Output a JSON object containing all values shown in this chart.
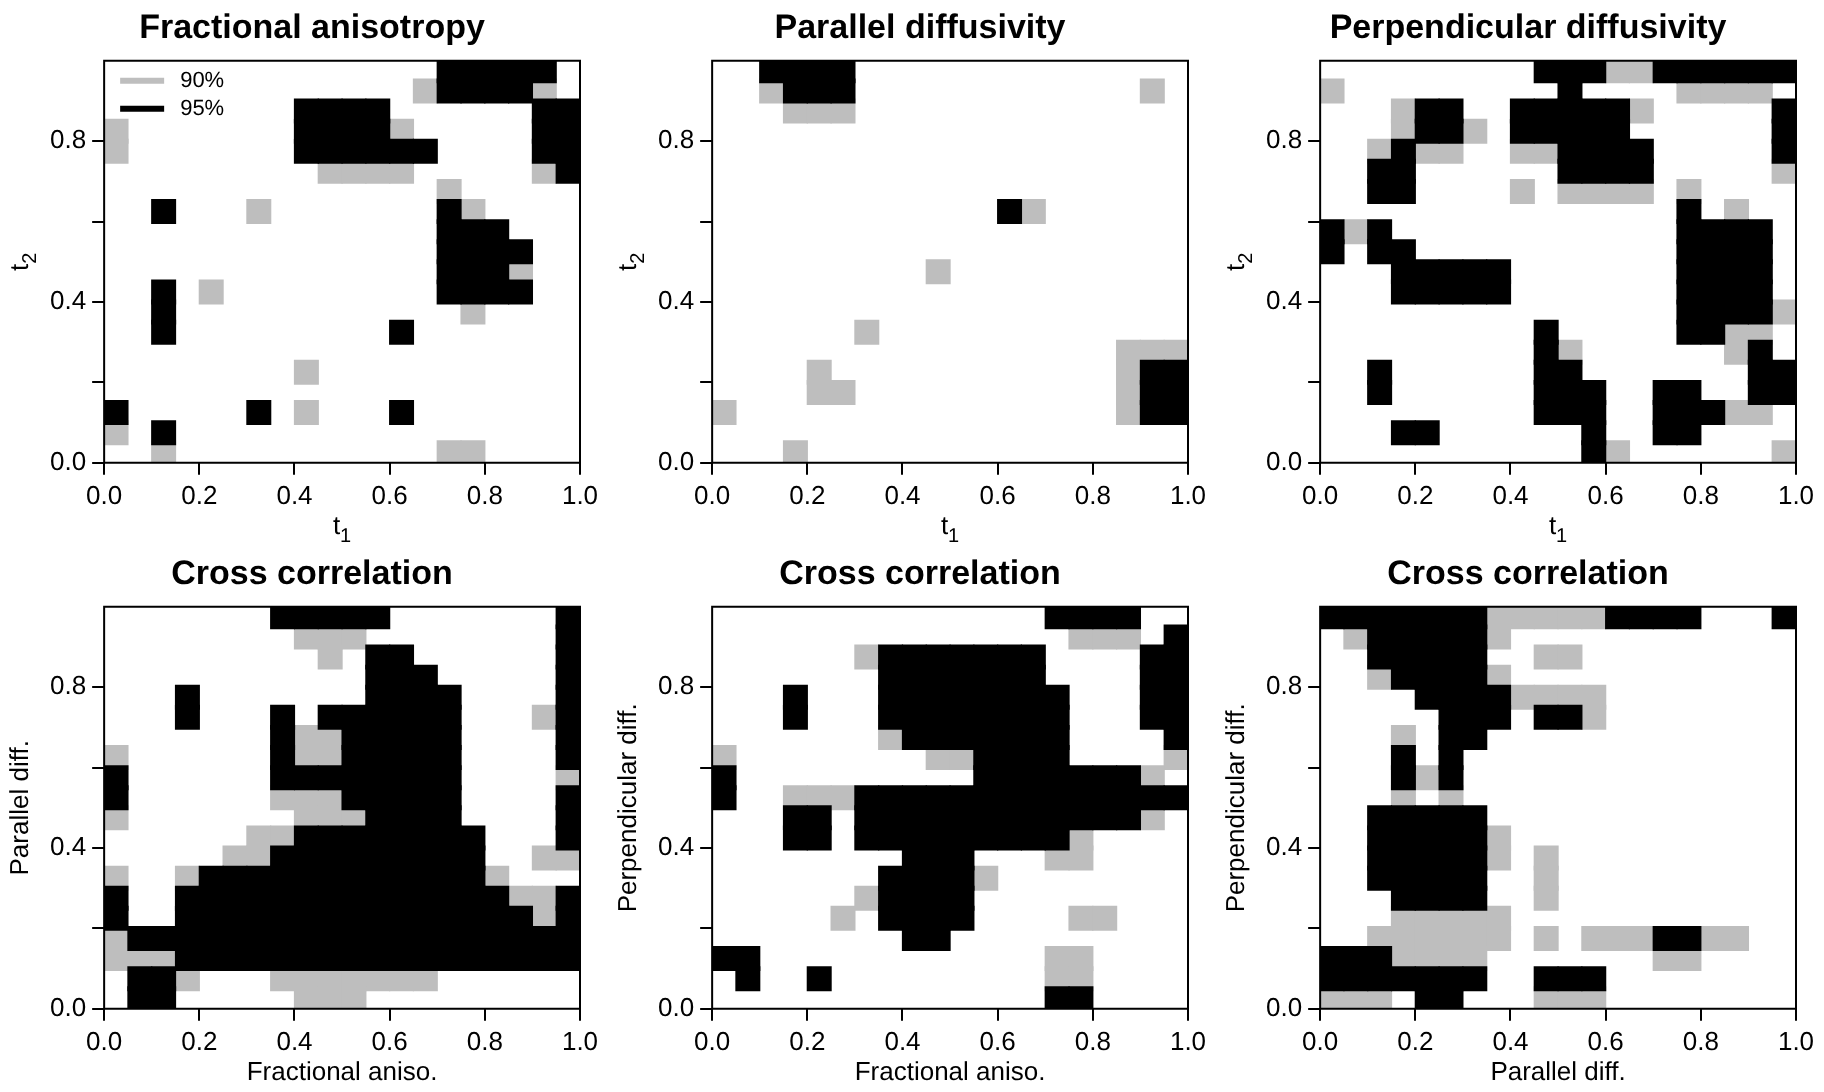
{
  "chart_data": [
    {
      "type": "scatter",
      "title": "Fractional anisotropy",
      "xlabel": "t$_{1}$",
      "ylabel": "t$_{2}$",
      "xlim": [
        0,
        1
      ],
      "ylim": [
        0,
        1
      ],
      "xticks": [
        {
          "value": 0,
          "label": "0.0"
        },
        {
          "value": 0.2,
          "label": "0.2"
        },
        {
          "value": 0.4,
          "label": "0.4"
        },
        {
          "value": 0.6,
          "label": "0.6"
        },
        {
          "value": 0.8,
          "label": "0.8"
        },
        {
          "value": 1,
          "label": "1.0"
        }
      ],
      "yticks": [
        {
          "value": 0,
          "label": "0.0"
        },
        {
          "value": 0.2,
          "label": null
        },
        {
          "value": 0.4,
          "label": "0.4"
        },
        {
          "value": 0.6,
          "label": null
        },
        {
          "value": 0.8,
          "label": "0.8"
        }
      ],
      "marker": "square",
      "legend": "top left",
      "series": [
        {
          "name": "90%",
          "color": "#bebebe",
          "x": [
            0.675,
            0.925,
            0.025,
            0.625,
            0.025,
            0.475,
            0.525,
            0.575,
            0.625,
            0.925,
            0.725,
            0.325,
            0.775,
            0.875,
            0.225,
            0.775,
            0.425,
            0.425,
            0.025,
            0.125,
            0.725,
            0.775
          ],
          "values": [
            0.925,
            0.925,
            0.825,
            0.825,
            0.775,
            0.725,
            0.725,
            0.725,
            0.725,
            0.725,
            0.675,
            0.625,
            0.625,
            0.475,
            0.425,
            0.375,
            0.225,
            0.125,
            0.075,
            0.025,
            0.025,
            0.025
          ]
        },
        {
          "name": "95%",
          "color": "#000000",
          "x": [
            0.725,
            0.775,
            0.825,
            0.875,
            0.925,
            0.725,
            0.775,
            0.825,
            0.875,
            0.425,
            0.475,
            0.525,
            0.575,
            0.925,
            0.975,
            0.425,
            0.475,
            0.525,
            0.575,
            0.925,
            0.975,
            0.425,
            0.475,
            0.525,
            0.575,
            0.625,
            0.675,
            0.925,
            0.975,
            0.975,
            0.125,
            0.725,
            0.725,
            0.775,
            0.825,
            0.725,
            0.775,
            0.825,
            0.875,
            0.725,
            0.775,
            0.825,
            0.125,
            0.725,
            0.775,
            0.825,
            0.875,
            0.125,
            0.125,
            0.625,
            0.025,
            0.325,
            0.625,
            0.125
          ],
          "values": [
            0.975,
            0.975,
            0.975,
            0.975,
            0.975,
            0.925,
            0.925,
            0.925,
            0.925,
            0.875,
            0.875,
            0.875,
            0.875,
            0.875,
            0.875,
            0.825,
            0.825,
            0.825,
            0.825,
            0.825,
            0.825,
            0.775,
            0.775,
            0.775,
            0.775,
            0.775,
            0.775,
            0.775,
            0.775,
            0.725,
            0.625,
            0.625,
            0.575,
            0.575,
            0.575,
            0.525,
            0.525,
            0.525,
            0.525,
            0.475,
            0.475,
            0.475,
            0.425,
            0.425,
            0.425,
            0.425,
            0.425,
            0.375,
            0.325,
            0.325,
            0.125,
            0.125,
            0.125,
            0.075
          ]
        }
      ]
    },
    {
      "type": "scatter",
      "title": "Parallel diffusivity",
      "xlabel": "t$_{1}$",
      "ylabel": "t$_{2}$",
      "xlim": [
        0,
        1
      ],
      "ylim": [
        0,
        1
      ],
      "xticks": [
        {
          "value": 0,
          "label": "0.0"
        },
        {
          "value": 0.2,
          "label": "0.2"
        },
        {
          "value": 0.4,
          "label": "0.4"
        },
        {
          "value": 0.6,
          "label": "0.6"
        },
        {
          "value": 0.8,
          "label": "0.8"
        },
        {
          "value": 1,
          "label": "1.0"
        }
      ],
      "yticks": [
        {
          "value": 0,
          "label": "0.0"
        },
        {
          "value": 0.2,
          "label": null
        },
        {
          "value": 0.4,
          "label": "0.4"
        },
        {
          "value": 0.6,
          "label": null
        },
        {
          "value": 0.8,
          "label": "0.8"
        }
      ],
      "marker": "square",
      "series": [
        {
          "color": "#bebebe",
          "x": [
            0.125,
            0.925,
            0.175,
            0.225,
            0.275,
            0.675,
            0.475,
            0.325,
            0.875,
            0.925,
            0.975,
            0.225,
            0.875,
            0.225,
            0.275,
            0.875,
            0.025,
            0.875,
            0.175
          ],
          "values": [
            0.925,
            0.925,
            0.875,
            0.875,
            0.875,
            0.625,
            0.475,
            0.325,
            0.275,
            0.275,
            0.275,
            0.225,
            0.225,
            0.175,
            0.175,
            0.175,
            0.125,
            0.125,
            0.025
          ]
        },
        {
          "color": "#000000",
          "x": [
            0.125,
            0.175,
            0.225,
            0.275,
            0.175,
            0.225,
            0.275,
            0.625,
            0.925,
            0.975,
            0.925,
            0.975,
            0.925,
            0.975
          ],
          "values": [
            0.975,
            0.975,
            0.975,
            0.975,
            0.925,
            0.925,
            0.925,
            0.625,
            0.225,
            0.225,
            0.175,
            0.175,
            0.125,
            0.125
          ]
        }
      ]
    },
    {
      "type": "scatter",
      "title": "Perpendicular diffusivity",
      "xlabel": "t$_{1}$",
      "ylabel": "t$_{2}$",
      "xlim": [
        0,
        1
      ],
      "ylim": [
        0,
        1
      ],
      "xticks": [
        {
          "value": 0,
          "label": "0.0"
        },
        {
          "value": 0.2,
          "label": "0.2"
        },
        {
          "value": 0.4,
          "label": "0.4"
        },
        {
          "value": 0.6,
          "label": "0.6"
        },
        {
          "value": 0.8,
          "label": "0.8"
        },
        {
          "value": 1,
          "label": "1.0"
        }
      ],
      "yticks": [
        {
          "value": 0,
          "label": "0.0"
        },
        {
          "value": 0.2,
          "label": null
        },
        {
          "value": 0.4,
          "label": "0.4"
        },
        {
          "value": 0.6,
          "label": null
        },
        {
          "value": 0.8,
          "label": "0.8"
        }
      ],
      "marker": "square",
      "series": [
        {
          "color": "#bebebe",
          "x": [
            0.625,
            0.675,
            0.025,
            0.775,
            0.825,
            0.875,
            0.925,
            0.175,
            0.675,
            0.175,
            0.325,
            0.125,
            0.225,
            0.275,
            0.425,
            0.475,
            0.975,
            0.425,
            0.525,
            0.575,
            0.625,
            0.675,
            0.775,
            0.875,
            0.075,
            0.975,
            0.875,
            0.925,
            0.525,
            0.875,
            0.875,
            0.925,
            0.625,
            0.975
          ],
          "values": [
            0.975,
            0.975,
            0.925,
            0.925,
            0.925,
            0.925,
            0.925,
            0.875,
            0.875,
            0.825,
            0.825,
            0.775,
            0.775,
            0.775,
            0.775,
            0.775,
            0.725,
            0.675,
            0.675,
            0.675,
            0.675,
            0.675,
            0.675,
            0.625,
            0.575,
            0.375,
            0.325,
            0.325,
            0.275,
            0.275,
            0.125,
            0.125,
            0.025,
            0.025
          ]
        },
        {
          "color": "#000000",
          "x": [
            0.475,
            0.525,
            0.575,
            0.725,
            0.775,
            0.825,
            0.875,
            0.925,
            0.975,
            0.525,
            0.225,
            0.275,
            0.425,
            0.475,
            0.525,
            0.575,
            0.625,
            0.975,
            0.225,
            0.275,
            0.425,
            0.475,
            0.525,
            0.575,
            0.625,
            0.975,
            0.175,
            0.525,
            0.575,
            0.625,
            0.675,
            0.975,
            0.125,
            0.175,
            0.525,
            0.575,
            0.625,
            0.675,
            0.125,
            0.175,
            0.775,
            0.025,
            0.125,
            0.775,
            0.825,
            0.875,
            0.925,
            0.025,
            0.125,
            0.175,
            0.775,
            0.825,
            0.875,
            0.925,
            0.175,
            0.225,
            0.275,
            0.325,
            0.375,
            0.775,
            0.825,
            0.875,
            0.925,
            0.175,
            0.225,
            0.275,
            0.325,
            0.375,
            0.775,
            0.825,
            0.875,
            0.925,
            0.775,
            0.825,
            0.875,
            0.925,
            0.475,
            0.775,
            0.825,
            0.475,
            0.925,
            0.125,
            0.475,
            0.525,
            0.925,
            0.975,
            0.125,
            0.475,
            0.525,
            0.575,
            0.725,
            0.775,
            0.925,
            0.975,
            0.475,
            0.525,
            0.575,
            0.725,
            0.775,
            0.825,
            0.175,
            0.225,
            0.575,
            0.725,
            0.775,
            0.575
          ],
          "values": [
            0.975,
            0.975,
            0.975,
            0.975,
            0.975,
            0.975,
            0.975,
            0.975,
            0.975,
            0.925,
            0.875,
            0.875,
            0.875,
            0.875,
            0.875,
            0.875,
            0.875,
            0.875,
            0.825,
            0.825,
            0.825,
            0.825,
            0.825,
            0.825,
            0.825,
            0.825,
            0.775,
            0.775,
            0.775,
            0.775,
            0.775,
            0.775,
            0.725,
            0.725,
            0.725,
            0.725,
            0.725,
            0.725,
            0.675,
            0.675,
            0.625,
            0.575,
            0.575,
            0.575,
            0.575,
            0.575,
            0.575,
            0.525,
            0.525,
            0.525,
            0.525,
            0.525,
            0.525,
            0.525,
            0.475,
            0.475,
            0.475,
            0.475,
            0.475,
            0.475,
            0.475,
            0.475,
            0.475,
            0.425,
            0.425,
            0.425,
            0.425,
            0.425,
            0.425,
            0.425,
            0.425,
            0.425,
            0.375,
            0.375,
            0.375,
            0.375,
            0.325,
            0.325,
            0.325,
            0.275,
            0.275,
            0.225,
            0.225,
            0.225,
            0.225,
            0.225,
            0.175,
            0.175,
            0.175,
            0.175,
            0.175,
            0.175,
            0.175,
            0.175,
            0.125,
            0.125,
            0.125,
            0.125,
            0.125,
            0.125,
            0.075,
            0.075,
            0.075,
            0.075,
            0.075,
            0.025
          ]
        }
      ]
    },
    {
      "type": "scatter",
      "title": "Cross correlation",
      "xlabel": "Fractional aniso.",
      "ylabel": "Parallel diff.",
      "xlim": [
        0,
        1
      ],
      "ylim": [
        0,
        1
      ],
      "xticks": [
        {
          "value": 0,
          "label": "0.0"
        },
        {
          "value": 0.2,
          "label": "0.2"
        },
        {
          "value": 0.4,
          "label": "0.4"
        },
        {
          "value": 0.6,
          "label": "0.6"
        },
        {
          "value": 0.8,
          "label": "0.8"
        },
        {
          "value": 1,
          "label": "1.0"
        }
      ],
      "yticks": [
        {
          "value": 0,
          "label": "0.0"
        },
        {
          "value": 0.2,
          "label": null
        },
        {
          "value": 0.4,
          "label": "0.4"
        },
        {
          "value": 0.6,
          "label": null
        },
        {
          "value": 0.8,
          "label": "0.8"
        }
      ],
      "marker": "square",
      "series": [
        {
          "color": "#bebebe",
          "x": [
            0.425,
            0.475,
            0.525,
            0.475,
            0.925,
            0.425,
            0.475,
            0.025,
            0.425,
            0.475,
            0.975,
            0.375,
            0.425,
            0.475,
            0.025,
            0.425,
            0.475,
            0.525,
            0.325,
            0.375,
            0.275,
            0.325,
            0.925,
            0.975,
            0.025,
            0.175,
            0.825,
            0.875,
            0.925,
            0.925,
            0.025,
            0.025,
            0.075,
            0.125,
            0.175,
            0.375,
            0.425,
            0.475,
            0.525,
            0.575,
            0.625,
            0.675,
            0.425,
            0.475,
            0.525
          ],
          "values": [
            0.925,
            0.925,
            0.925,
            0.875,
            0.725,
            0.675,
            0.675,
            0.625,
            0.625,
            0.625,
            0.575,
            0.525,
            0.525,
            0.525,
            0.475,
            0.475,
            0.475,
            0.475,
            0.425,
            0.425,
            0.375,
            0.375,
            0.375,
            0.375,
            0.325,
            0.325,
            0.325,
            0.275,
            0.275,
            0.225,
            0.175,
            0.125,
            0.125,
            0.125,
            0.075,
            0.075,
            0.075,
            0.075,
            0.075,
            0.075,
            0.075,
            0.075,
            0.025,
            0.025,
            0.025
          ]
        },
        {
          "color": "#000000",
          "x": [
            0.375,
            0.425,
            0.475,
            0.525,
            0.575,
            0.975,
            0.975,
            0.575,
            0.625,
            0.975,
            0.575,
            0.625,
            0.675,
            0.975,
            0.175,
            0.575,
            0.625,
            0.675,
            0.725,
            0.975,
            0.175,
            0.375,
            0.475,
            0.525,
            0.575,
            0.625,
            0.675,
            0.725,
            0.975,
            0.375,
            0.525,
            0.575,
            0.625,
            0.675,
            0.725,
            0.975,
            0.375,
            0.525,
            0.575,
            0.625,
            0.675,
            0.725,
            0.975,
            0.025,
            0.375,
            0.425,
            0.475,
            0.525,
            0.575,
            0.625,
            0.675,
            0.725,
            0.025,
            0.525,
            0.575,
            0.625,
            0.675,
            0.725,
            0.975,
            0.575,
            0.625,
            0.675,
            0.725,
            0.975,
            0.425,
            0.475,
            0.525,
            0.575,
            0.625,
            0.675,
            0.725,
            0.775,
            0.975,
            0.375,
            0.425,
            0.475,
            0.525,
            0.575,
            0.625,
            0.675,
            0.725,
            0.775,
            0.225,
            0.275,
            0.325,
            0.375,
            0.425,
            0.475,
            0.525,
            0.575,
            0.625,
            0.675,
            0.725,
            0.775,
            0.025,
            0.175,
            0.225,
            0.275,
            0.325,
            0.375,
            0.425,
            0.475,
            0.525,
            0.575,
            0.625,
            0.675,
            0.725,
            0.775,
            0.825,
            0.975,
            0.025,
            0.175,
            0.225,
            0.275,
            0.325,
            0.375,
            0.425,
            0.475,
            0.525,
            0.575,
            0.625,
            0.675,
            0.725,
            0.775,
            0.825,
            0.875,
            0.975,
            0.075,
            0.125,
            0.175,
            0.225,
            0.275,
            0.325,
            0.375,
            0.425,
            0.475,
            0.525,
            0.575,
            0.625,
            0.675,
            0.725,
            0.775,
            0.825,
            0.875,
            0.925,
            0.975,
            0.175,
            0.225,
            0.275,
            0.325,
            0.375,
            0.425,
            0.475,
            0.525,
            0.575,
            0.625,
            0.675,
            0.725,
            0.775,
            0.825,
            0.875,
            0.925,
            0.975,
            0.075,
            0.125,
            0.075,
            0.125
          ],
          "values": [
            0.975,
            0.975,
            0.975,
            0.975,
            0.975,
            0.975,
            0.925,
            0.875,
            0.875,
            0.875,
            0.825,
            0.825,
            0.825,
            0.825,
            0.775,
            0.775,
            0.775,
            0.775,
            0.775,
            0.775,
            0.725,
            0.725,
            0.725,
            0.725,
            0.725,
            0.725,
            0.725,
            0.725,
            0.725,
            0.675,
            0.675,
            0.675,
            0.675,
            0.675,
            0.675,
            0.675,
            0.625,
            0.625,
            0.625,
            0.625,
            0.625,
            0.625,
            0.625,
            0.575,
            0.575,
            0.575,
            0.575,
            0.575,
            0.575,
            0.575,
            0.575,
            0.575,
            0.525,
            0.525,
            0.525,
            0.525,
            0.525,
            0.525,
            0.525,
            0.475,
            0.475,
            0.475,
            0.475,
            0.475,
            0.425,
            0.425,
            0.425,
            0.425,
            0.425,
            0.425,
            0.425,
            0.425,
            0.425,
            0.375,
            0.375,
            0.375,
            0.375,
            0.375,
            0.375,
            0.375,
            0.375,
            0.375,
            0.325,
            0.325,
            0.325,
            0.325,
            0.325,
            0.325,
            0.325,
            0.325,
            0.325,
            0.325,
            0.325,
            0.325,
            0.275,
            0.275,
            0.275,
            0.275,
            0.275,
            0.275,
            0.275,
            0.275,
            0.275,
            0.275,
            0.275,
            0.275,
            0.275,
            0.275,
            0.275,
            0.275,
            0.225,
            0.225,
            0.225,
            0.225,
            0.225,
            0.225,
            0.225,
            0.225,
            0.225,
            0.225,
            0.225,
            0.225,
            0.225,
            0.225,
            0.225,
            0.225,
            0.225,
            0.175,
            0.175,
            0.175,
            0.175,
            0.175,
            0.175,
            0.175,
            0.175,
            0.175,
            0.175,
            0.175,
            0.175,
            0.175,
            0.175,
            0.175,
            0.175,
            0.175,
            0.175,
            0.175,
            0.125,
            0.125,
            0.125,
            0.125,
            0.125,
            0.125,
            0.125,
            0.125,
            0.125,
            0.125,
            0.125,
            0.125,
            0.125,
            0.125,
            0.125,
            0.125,
            0.125,
            0.075,
            0.075,
            0.025,
            0.025
          ]
        }
      ]
    },
    {
      "type": "scatter",
      "title": "Cross correlation",
      "xlabel": "Fractional aniso.",
      "ylabel": "Perpendicular diff.",
      "xlim": [
        0,
        1
      ],
      "ylim": [
        0,
        1
      ],
      "xticks": [
        {
          "value": 0,
          "label": "0.0"
        },
        {
          "value": 0.2,
          "label": "0.2"
        },
        {
          "value": 0.4,
          "label": "0.4"
        },
        {
          "value": 0.6,
          "label": "0.6"
        },
        {
          "value": 0.8,
          "label": "0.8"
        },
        {
          "value": 1,
          "label": "1.0"
        }
      ],
      "yticks": [
        {
          "value": 0,
          "label": "0.0"
        },
        {
          "value": 0.2,
          "label": null
        },
        {
          "value": 0.4,
          "label": "0.4"
        },
        {
          "value": 0.6,
          "label": null
        },
        {
          "value": 0.8,
          "label": "0.8"
        }
      ],
      "marker": "square",
      "series": [
        {
          "color": "#bebebe",
          "x": [
            0.775,
            0.825,
            0.875,
            0.325,
            0.375,
            0.025,
            0.475,
            0.525,
            0.975,
            0.925,
            0.175,
            0.225,
            0.275,
            0.925,
            0.775,
            0.725,
            0.775,
            0.575,
            0.325,
            0.275,
            0.775,
            0.825,
            0.725,
            0.775,
            0.725,
            0.775
          ],
          "values": [
            0.925,
            0.925,
            0.925,
            0.875,
            0.675,
            0.625,
            0.625,
            0.625,
            0.625,
            0.575,
            0.525,
            0.525,
            0.525,
            0.475,
            0.425,
            0.375,
            0.375,
            0.325,
            0.275,
            0.225,
            0.225,
            0.225,
            0.125,
            0.125,
            0.075,
            0.075
          ]
        },
        {
          "color": "#000000",
          "x": [
            0.725,
            0.775,
            0.825,
            0.875,
            0.975,
            0.375,
            0.425,
            0.475,
            0.525,
            0.575,
            0.625,
            0.675,
            0.925,
            0.975,
            0.375,
            0.425,
            0.475,
            0.525,
            0.575,
            0.625,
            0.675,
            0.925,
            0.975,
            0.175,
            0.375,
            0.425,
            0.475,
            0.525,
            0.575,
            0.625,
            0.675,
            0.725,
            0.925,
            0.975,
            0.175,
            0.375,
            0.425,
            0.475,
            0.525,
            0.575,
            0.625,
            0.675,
            0.725,
            0.925,
            0.975,
            0.425,
            0.475,
            0.525,
            0.575,
            0.625,
            0.675,
            0.725,
            0.975,
            0.575,
            0.625,
            0.675,
            0.725,
            0.025,
            0.575,
            0.625,
            0.675,
            0.725,
            0.775,
            0.825,
            0.875,
            0.025,
            0.325,
            0.375,
            0.425,
            0.475,
            0.525,
            0.575,
            0.625,
            0.675,
            0.725,
            0.775,
            0.825,
            0.875,
            0.925,
            0.975,
            0.175,
            0.225,
            0.325,
            0.375,
            0.425,
            0.475,
            0.525,
            0.575,
            0.625,
            0.675,
            0.725,
            0.775,
            0.825,
            0.875,
            0.175,
            0.225,
            0.325,
            0.375,
            0.425,
            0.475,
            0.525,
            0.575,
            0.625,
            0.675,
            0.725,
            0.425,
            0.475,
            0.525,
            0.375,
            0.425,
            0.475,
            0.525,
            0.375,
            0.425,
            0.475,
            0.525,
            0.375,
            0.425,
            0.475,
            0.525,
            0.425,
            0.475,
            0.025,
            0.075,
            0.075,
            0.225,
            0.725,
            0.775
          ],
          "values": [
            0.975,
            0.975,
            0.975,
            0.975,
            0.925,
            0.875,
            0.875,
            0.875,
            0.875,
            0.875,
            0.875,
            0.875,
            0.875,
            0.875,
            0.825,
            0.825,
            0.825,
            0.825,
            0.825,
            0.825,
            0.825,
            0.825,
            0.825,
            0.775,
            0.775,
            0.775,
            0.775,
            0.775,
            0.775,
            0.775,
            0.775,
            0.775,
            0.775,
            0.775,
            0.725,
            0.725,
            0.725,
            0.725,
            0.725,
            0.725,
            0.725,
            0.725,
            0.725,
            0.725,
            0.725,
            0.675,
            0.675,
            0.675,
            0.675,
            0.675,
            0.675,
            0.675,
            0.675,
            0.625,
            0.625,
            0.625,
            0.625,
            0.575,
            0.575,
            0.575,
            0.575,
            0.575,
            0.575,
            0.575,
            0.575,
            0.525,
            0.525,
            0.525,
            0.525,
            0.525,
            0.525,
            0.525,
            0.525,
            0.525,
            0.525,
            0.525,
            0.525,
            0.525,
            0.525,
            0.525,
            0.475,
            0.475,
            0.475,
            0.475,
            0.475,
            0.475,
            0.475,
            0.475,
            0.475,
            0.475,
            0.475,
            0.475,
            0.475,
            0.475,
            0.425,
            0.425,
            0.425,
            0.425,
            0.425,
            0.425,
            0.425,
            0.425,
            0.425,
            0.425,
            0.425,
            0.375,
            0.375,
            0.375,
            0.325,
            0.325,
            0.325,
            0.325,
            0.275,
            0.275,
            0.275,
            0.275,
            0.225,
            0.225,
            0.225,
            0.225,
            0.175,
            0.175,
            0.125,
            0.125,
            0.075,
            0.075,
            0.025,
            0.025
          ]
        }
      ]
    },
    {
      "type": "scatter",
      "title": "Cross correlation",
      "xlabel": "Parallel diff.",
      "ylabel": "Perpendicular diff.",
      "xlim": [
        0,
        1
      ],
      "ylim": [
        0,
        1
      ],
      "xticks": [
        {
          "value": 0,
          "label": "0.0"
        },
        {
          "value": 0.2,
          "label": "0.2"
        },
        {
          "value": 0.4,
          "label": "0.4"
        },
        {
          "value": 0.6,
          "label": "0.6"
        },
        {
          "value": 0.8,
          "label": "0.8"
        },
        {
          "value": 1,
          "label": "1.0"
        }
      ],
      "yticks": [
        {
          "value": 0,
          "label": "0.0"
        },
        {
          "value": 0.2,
          "label": null
        },
        {
          "value": 0.4,
          "label": "0.4"
        },
        {
          "value": 0.6,
          "label": null
        },
        {
          "value": 0.8,
          "label": "0.8"
        }
      ],
      "marker": "square",
      "series": [
        {
          "color": "#bebebe",
          "x": [
            0.375,
            0.425,
            0.475,
            0.525,
            0.575,
            0.075,
            0.375,
            0.475,
            0.525,
            0.125,
            0.375,
            0.425,
            0.475,
            0.525,
            0.575,
            0.575,
            0.175,
            0.225,
            0.175,
            0.275,
            0.375,
            0.375,
            0.475,
            0.475,
            0.475,
            0.175,
            0.225,
            0.275,
            0.325,
            0.375,
            0.125,
            0.175,
            0.225,
            0.275,
            0.325,
            0.375,
            0.475,
            0.575,
            0.625,
            0.675,
            0.825,
            0.875,
            0.175,
            0.225,
            0.275,
            0.325,
            0.725,
            0.775,
            0.025,
            0.075,
            0.125,
            0.475,
            0.525,
            0.575
          ],
          "values": [
            0.975,
            0.975,
            0.975,
            0.975,
            0.975,
            0.925,
            0.925,
            0.875,
            0.875,
            0.825,
            0.825,
            0.775,
            0.775,
            0.775,
            0.775,
            0.725,
            0.675,
            0.575,
            0.525,
            0.525,
            0.425,
            0.375,
            0.375,
            0.325,
            0.275,
            0.225,
            0.225,
            0.225,
            0.225,
            0.225,
            0.175,
            0.175,
            0.175,
            0.175,
            0.175,
            0.175,
            0.175,
            0.175,
            0.175,
            0.175,
            0.175,
            0.175,
            0.125,
            0.125,
            0.125,
            0.125,
            0.125,
            0.125,
            0.025,
            0.025,
            0.025,
            0.025,
            0.025,
            0.025
          ]
        },
        {
          "color": "#000000",
          "x": [
            0.025,
            0.075,
            0.125,
            0.175,
            0.225,
            0.275,
            0.325,
            0.625,
            0.675,
            0.725,
            0.775,
            0.975,
            0.125,
            0.175,
            0.225,
            0.275,
            0.325,
            0.125,
            0.175,
            0.225,
            0.275,
            0.325,
            0.175,
            0.225,
            0.275,
            0.325,
            0.225,
            0.275,
            0.325,
            0.375,
            0.275,
            0.325,
            0.375,
            0.475,
            0.525,
            0.275,
            0.325,
            0.175,
            0.275,
            0.175,
            0.275,
            0.125,
            0.175,
            0.225,
            0.275,
            0.325,
            0.125,
            0.175,
            0.225,
            0.275,
            0.325,
            0.125,
            0.175,
            0.225,
            0.275,
            0.325,
            0.125,
            0.175,
            0.225,
            0.275,
            0.325,
            0.175,
            0.225,
            0.275,
            0.325,
            0.725,
            0.775,
            0.025,
            0.075,
            0.125,
            0.025,
            0.075,
            0.125,
            0.175,
            0.225,
            0.275,
            0.325,
            0.475,
            0.525,
            0.575,
            0.225,
            0.275
          ],
          "values": [
            0.975,
            0.975,
            0.975,
            0.975,
            0.975,
            0.975,
            0.975,
            0.975,
            0.975,
            0.975,
            0.975,
            0.975,
            0.925,
            0.925,
            0.925,
            0.925,
            0.925,
            0.875,
            0.875,
            0.875,
            0.875,
            0.875,
            0.825,
            0.825,
            0.825,
            0.825,
            0.775,
            0.775,
            0.775,
            0.775,
            0.725,
            0.725,
            0.725,
            0.725,
            0.725,
            0.675,
            0.675,
            0.625,
            0.625,
            0.575,
            0.575,
            0.475,
            0.475,
            0.475,
            0.475,
            0.475,
            0.425,
            0.425,
            0.425,
            0.425,
            0.425,
            0.375,
            0.375,
            0.375,
            0.375,
            0.375,
            0.325,
            0.325,
            0.325,
            0.325,
            0.325,
            0.275,
            0.275,
            0.275,
            0.275,
            0.175,
            0.175,
            0.125,
            0.125,
            0.125,
            0.075,
            0.075,
            0.075,
            0.075,
            0.075,
            0.075,
            0.075,
            0.075,
            0.075,
            0.075,
            0.025,
            0.025
          ]
        }
      ]
    }
  ]
}
